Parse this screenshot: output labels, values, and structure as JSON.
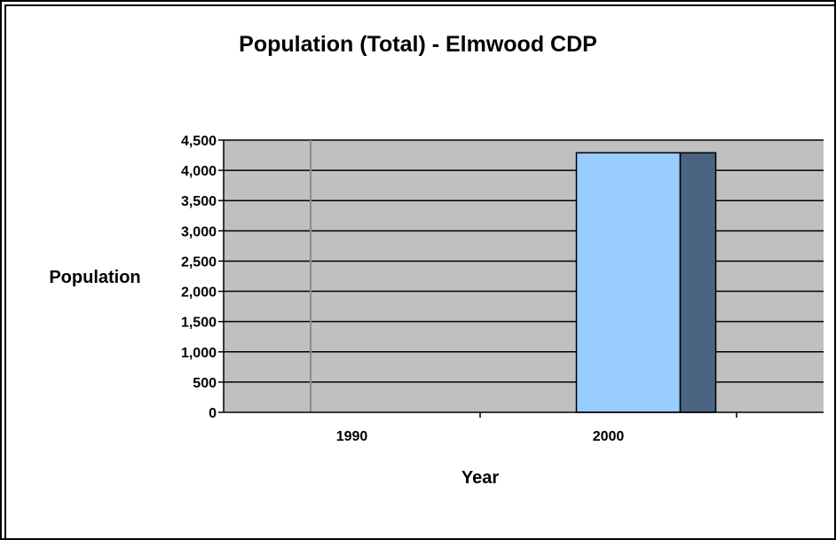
{
  "chart_data": {
    "type": "bar",
    "title": "Population (Total) - Elmwood CDP",
    "xlabel": "Year",
    "ylabel": "Population",
    "categories": [
      "1990",
      "2000"
    ],
    "series": [
      {
        "values": [
          null,
          4290
        ]
      }
    ],
    "ylim": [
      0,
      4500
    ],
    "yticks": [
      0,
      500,
      1000,
      1500,
      2000,
      2500,
      3000,
      3500,
      4000,
      4500
    ],
    "ytick_labels": [
      "0",
      "500",
      "1,000",
      "1,500",
      "2,000",
      "2,500",
      "3,000",
      "3,500",
      "4,000",
      "4,500"
    ],
    "grid": true,
    "legend": "none",
    "colors": {
      "plot_background": "#c0c0c0",
      "bar_face": "#99ccff",
      "bar_side": "#4a6482",
      "gridline": "#000000"
    }
  }
}
